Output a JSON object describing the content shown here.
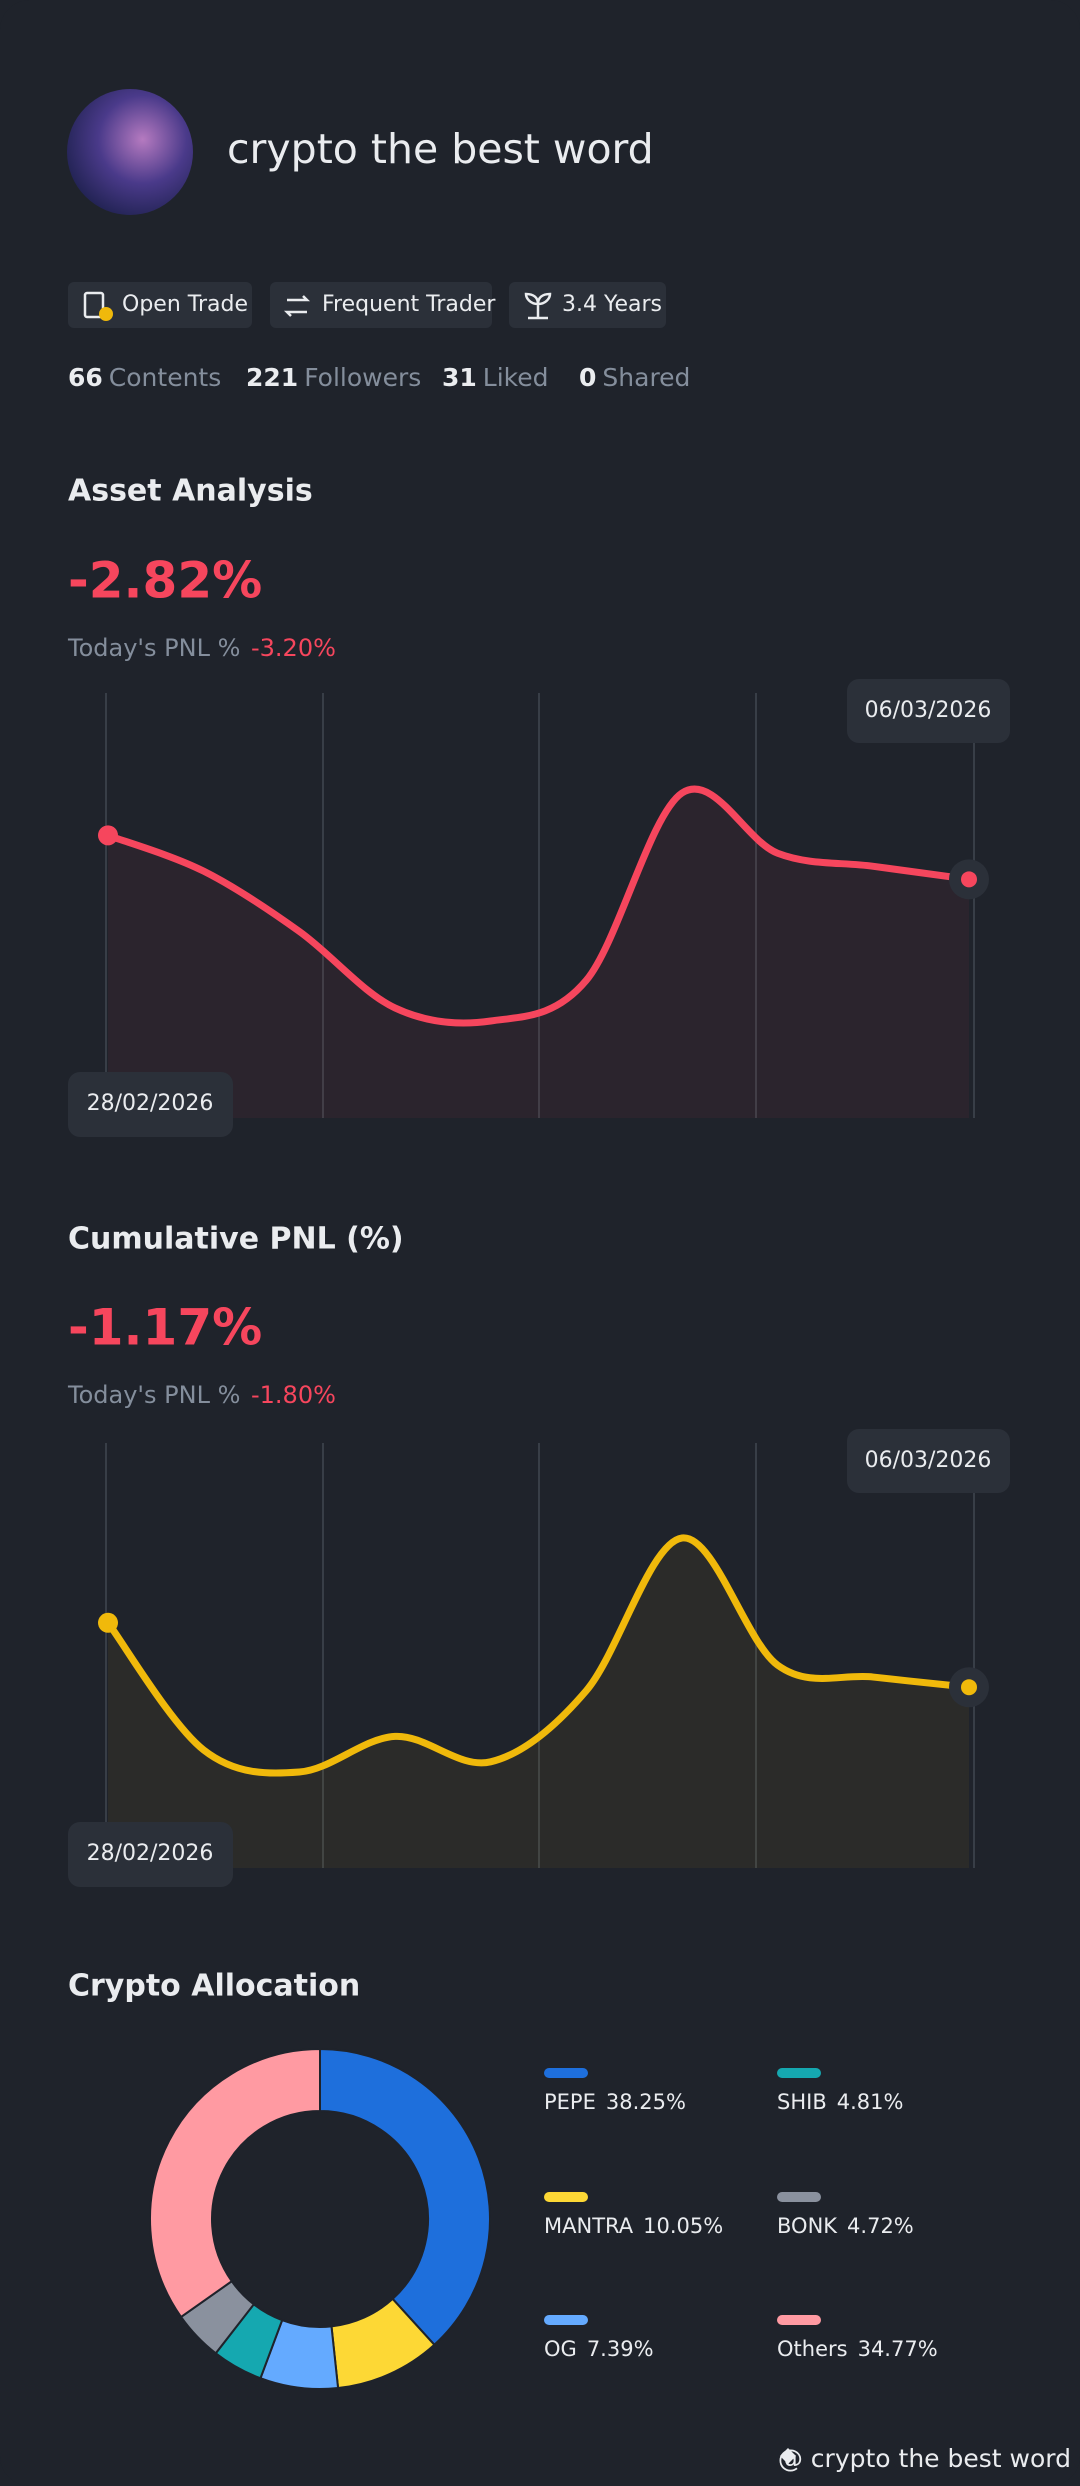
{
  "profile": {
    "name": "crypto the best word",
    "badges": [
      "Open Trade",
      "Frequent Trader",
      "3.4 Years"
    ]
  },
  "stats": [
    {
      "count": 66,
      "label": "Contents"
    },
    {
      "count": 221,
      "label": "Followers"
    },
    {
      "count": 31,
      "label": "Liked"
    },
    {
      "count": 0,
      "label": "Shared"
    }
  ],
  "asset_analysis": {
    "title": "Asset Analysis",
    "headline": "-2.82%",
    "today_label": "Today's PNL %",
    "today_value": "-3.20%",
    "chart": {
      "type": "line",
      "color": "#f6465d",
      "start_date": "28/02/2026",
      "end_date": "06/03/2026",
      "values": [
        174,
        152,
        115,
        68,
        60,
        85,
        200,
        163,
        155,
        147
      ]
    }
  },
  "cumulative_pnl": {
    "title": "Cumulative PNL (%)",
    "headline": "-1.17%",
    "today_label": "Today's PNL %",
    "today_value": "-1.80%",
    "chart": {
      "type": "line",
      "color": "#f0b90b",
      "start_date": "28/02/2026",
      "end_date": "06/03/2026",
      "values": [
        180,
        105,
        92,
        113,
        98,
        140,
        230,
        155,
        148,
        142
      ]
    }
  },
  "crypto_allocation": {
    "title": "Crypto Allocation",
    "chart": {
      "type": "donut",
      "categories": [
        "PEPE",
        "MANTRA",
        "OG",
        "SHIB",
        "BONK",
        "Others"
      ],
      "values": [
        38.25,
        10.05,
        7.39,
        4.81,
        4.72,
        34.77
      ],
      "value_labels": [
        "38.25%",
        "10.05%",
        "7.39%",
        "4.81%",
        "4.72%",
        "34.77%"
      ],
      "colors": [
        "#1e6fdc",
        "#fdd835",
        "#64aaff",
        "#15a8b0",
        "#8a919e",
        "#ff9aa2"
      ]
    }
  },
  "footer": "@ crypto the best word"
}
